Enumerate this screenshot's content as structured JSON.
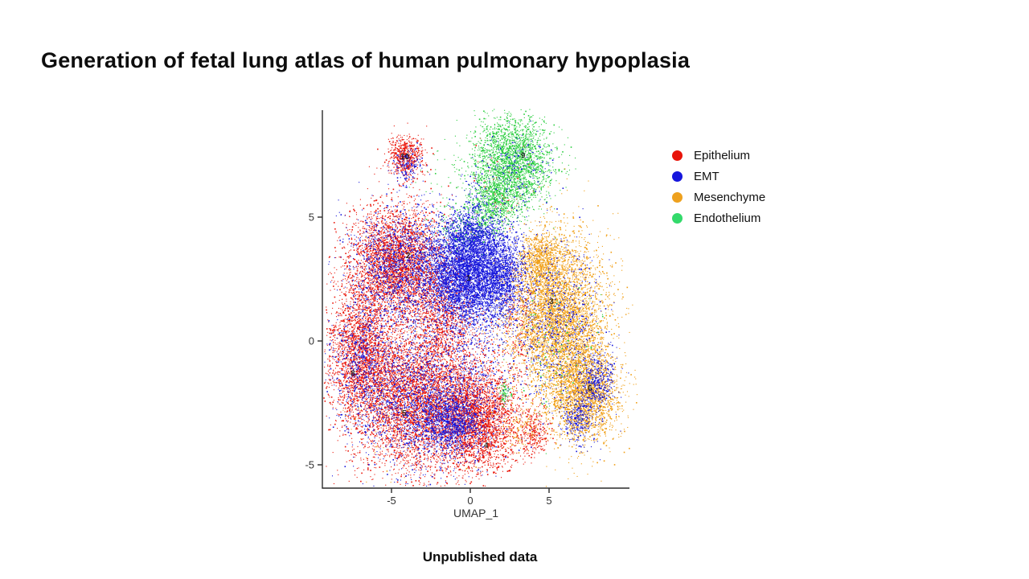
{
  "title": "Generation of fetal lung atlas of human pulmonary hypoplasia",
  "footer": {
    "note": "Unpublished data"
  },
  "chart_data": {
    "type": "scatter",
    "title": "",
    "xlabel": "UMAP_1",
    "xlim": [
      -9.4,
      10.1
    ],
    "ylim": [
      -5.9,
      9.3
    ],
    "grid": false,
    "x_ticks": [
      {
        "v": -5,
        "label": "-5"
      },
      {
        "v": 0,
        "label": "0"
      },
      {
        "v": 5,
        "label": "5"
      }
    ],
    "y_ticks": [
      {
        "v": 5,
        "label": "5"
      },
      {
        "v": 0,
        "label": "0"
      },
      {
        "v": -5,
        "label": "-5"
      }
    ],
    "legend": {
      "position": "right",
      "items": [
        {
          "label": "Epithelium",
          "color": "#e8140a"
        },
        {
          "label": "EMT",
          "color": "#1616dd"
        },
        {
          "label": "Mesenchyme",
          "color": "#eea11e"
        },
        {
          "label": "Endothelium",
          "color": "#33da6b"
        }
      ]
    },
    "colors": {
      "epithelium": "#ea1509",
      "emt": "#1717dc",
      "mesenchyme": "#f09e14",
      "endothelium": "#2bce3f"
    },
    "cluster_labels": [
      {
        "id": "10",
        "x": -4.15,
        "y": 7.45
      },
      {
        "id": "9",
        "x": 3.35,
        "y": 7.5
      },
      {
        "id": "2",
        "x": -3.95,
        "y": 3.45
      },
      {
        "id": "1",
        "x": -0.1,
        "y": 2.55
      },
      {
        "id": "3",
        "x": 5.15,
        "y": 1.6
      },
      {
        "id": "8",
        "x": -7.45,
        "y": -1.3
      },
      {
        "id": "5",
        "x": -4.2,
        "y": -2.9
      },
      {
        "id": "4",
        "x": 1.0,
        "y": -4.2
      },
      {
        "id": "6",
        "x": 7.6,
        "y": -1.9
      }
    ],
    "blobs": [
      {
        "group": "epithelium",
        "cx": -4.1,
        "cy": 7.45,
        "sx": 0.55,
        "sy": 0.42,
        "n": 550
      },
      {
        "group": "epithelium",
        "cx": -4.6,
        "cy": 3.1,
        "sx": 1.55,
        "sy": 1.15,
        "n": 3600
      },
      {
        "group": "epithelium",
        "cx": -7.0,
        "cy": -0.6,
        "sx": 1.05,
        "sy": 1.35,
        "n": 2200
      },
      {
        "group": "epithelium",
        "cx": -3.6,
        "cy": -2.4,
        "sx": 1.9,
        "sy": 1.5,
        "n": 4200
      },
      {
        "group": "epithelium",
        "cx": 0.4,
        "cy": -3.2,
        "sx": 1.4,
        "sy": 1.05,
        "n": 2800
      },
      {
        "group": "epithelium",
        "cx": 4.0,
        "cy": -3.7,
        "sx": 0.5,
        "sy": 0.45,
        "n": 260
      },
      {
        "group": "epithelium",
        "cx": -1.6,
        "cy": 0.8,
        "sx": 1.0,
        "sy": 1.0,
        "n": 900
      },
      {
        "group": "epithelium",
        "cx": 3.0,
        "cy": 0.8,
        "sx": 0.55,
        "sy": 1.2,
        "n": 220
      },
      {
        "group": "epithelium",
        "cx": 0.6,
        "cy": -1.0,
        "sx": 1.1,
        "sy": 1.1,
        "n": 160
      },
      {
        "group": "epithelium",
        "cx": 2.0,
        "cy": 6.2,
        "sx": 0.9,
        "sy": 0.8,
        "n": 70
      },
      {
        "group": "mesenchyme",
        "cx": 5.5,
        "cy": 1.0,
        "sx": 1.55,
        "sy": 1.65,
        "n": 4800
      },
      {
        "group": "mesenchyme",
        "cx": 4.4,
        "cy": 3.3,
        "sx": 0.6,
        "sy": 0.5,
        "n": 550
      },
      {
        "group": "mesenchyme",
        "cx": 7.3,
        "cy": -2.1,
        "sx": 1.05,
        "sy": 1.05,
        "n": 2300
      },
      {
        "group": "mesenchyme",
        "cx": -3.5,
        "cy": -2.5,
        "sx": 2.2,
        "sy": 1.5,
        "n": 130
      },
      {
        "group": "mesenchyme",
        "cx": -4.4,
        "cy": 3.1,
        "sx": 1.5,
        "sy": 1.1,
        "n": 80
      },
      {
        "group": "mesenchyme",
        "cx": 3.3,
        "cy": -3.5,
        "sx": 0.8,
        "sy": 0.5,
        "n": 120
      },
      {
        "group": "endothelium",
        "cx": 2.7,
        "cy": 7.2,
        "sx": 1.25,
        "sy": 0.95,
        "n": 2400
      },
      {
        "group": "endothelium",
        "cx": 1.4,
        "cy": 5.6,
        "sx": 0.7,
        "sy": 0.6,
        "n": 650
      },
      {
        "group": "endothelium",
        "cx": -0.4,
        "cy": 4.5,
        "sx": 0.95,
        "sy": 0.5,
        "n": 230
      },
      {
        "group": "endothelium",
        "cx": 2.2,
        "cy": -2.1,
        "sx": 0.18,
        "sy": 0.22,
        "n": 70
      },
      {
        "group": "endothelium",
        "cx": 5.6,
        "cy": -0.3,
        "sx": 1.4,
        "sy": 1.6,
        "n": 130
      },
      {
        "group": "endothelium",
        "cx": -1.5,
        "cy": 6.5,
        "sx": 1.0,
        "sy": 0.7,
        "n": 40
      },
      {
        "group": "emt",
        "cx": -0.3,
        "cy": 2.7,
        "sx": 1.35,
        "sy": 1.05,
        "n": 4200
      },
      {
        "group": "emt",
        "cx": 1.9,
        "cy": 2.7,
        "sx": 0.75,
        "sy": 0.95,
        "n": 1300
      },
      {
        "group": "emt",
        "cx": 0.2,
        "cy": 4.1,
        "sx": 0.85,
        "sy": 0.55,
        "n": 600
      },
      {
        "group": "emt",
        "cx": -4.4,
        "cy": 3.0,
        "sx": 1.6,
        "sy": 1.2,
        "n": 1500
      },
      {
        "group": "emt",
        "cx": -3.0,
        "cy": -2.5,
        "sx": 2.2,
        "sy": 1.4,
        "n": 1900
      },
      {
        "group": "emt",
        "cx": -1.1,
        "cy": -3.3,
        "sx": 0.95,
        "sy": 0.6,
        "n": 900
      },
      {
        "group": "emt",
        "cx": 8.1,
        "cy": -1.6,
        "sx": 0.55,
        "sy": 0.6,
        "n": 380
      },
      {
        "group": "emt",
        "cx": 6.9,
        "cy": -3.1,
        "sx": 0.55,
        "sy": 0.5,
        "n": 280
      },
      {
        "group": "emt",
        "cx": 5.4,
        "cy": 0.7,
        "sx": 1.5,
        "sy": 1.7,
        "n": 750
      },
      {
        "group": "emt",
        "cx": 2.9,
        "cy": 6.9,
        "sx": 1.15,
        "sy": 0.85,
        "n": 170
      },
      {
        "group": "emt",
        "cx": -4.0,
        "cy": 7.1,
        "sx": 0.5,
        "sy": 0.33,
        "n": 150
      },
      {
        "group": "emt",
        "cx": 0.4,
        "cy": -1.2,
        "sx": 1.2,
        "sy": 1.3,
        "n": 220
      },
      {
        "group": "emt",
        "cx": -6.8,
        "cy": -0.8,
        "sx": 1.0,
        "sy": 1.2,
        "n": 600
      },
      {
        "group": "emt",
        "cx": 0.3,
        "cy": 5.3,
        "sx": 0.5,
        "sy": 0.8,
        "n": 120
      }
    ],
    "axis_color": "#2a2a2a",
    "tick_label_color": "#333333",
    "cluster_label_color": "rgba(25,25,25,0.88)"
  }
}
